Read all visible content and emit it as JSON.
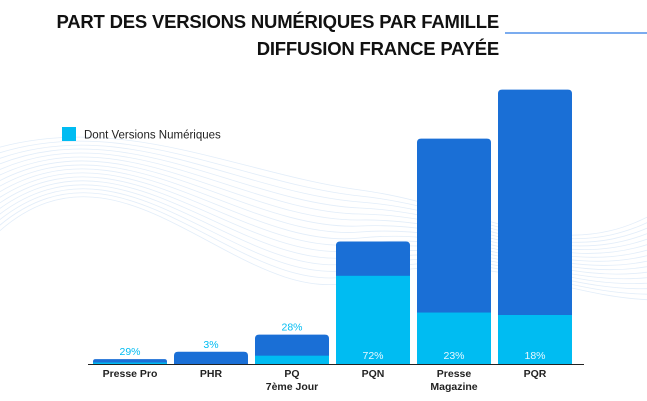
{
  "chart_data": {
    "type": "bar",
    "title_lines": [
      "PART DES VERSIONS NUMÉRIQUES PAR FAMILLE",
      "DIFFUSION FRANCE PAYÉE"
    ],
    "legend": {
      "label": "Dont Versions Numériques",
      "position": "top-left"
    },
    "categories": [
      {
        "lines": [
          "Presse Pro"
        ]
      },
      {
        "lines": [
          "PHR"
        ]
      },
      {
        "lines": [
          "PQ",
          "7ème Jour"
        ]
      },
      {
        "lines": [
          "PQN"
        ]
      },
      {
        "lines": [
          "Presse",
          "Magazine"
        ]
      },
      {
        "lines": [
          "PQR"
        ]
      }
    ],
    "series": [
      {
        "name": "Diffusion France Payée",
        "values": [
          2,
          5,
          12,
          50,
          92,
          112
        ],
        "color": "#1a6fd6"
      },
      {
        "name": "Dont Versions Numériques",
        "values": [
          0.6,
          0.15,
          3.4,
          36,
          21,
          20
        ],
        "color": "#00bcf2"
      }
    ],
    "labels": [
      "29%",
      "3%",
      "28%",
      "72%",
      "23%",
      "18%"
    ],
    "ylim": [
      0,
      120
    ],
    "grid": false
  }
}
